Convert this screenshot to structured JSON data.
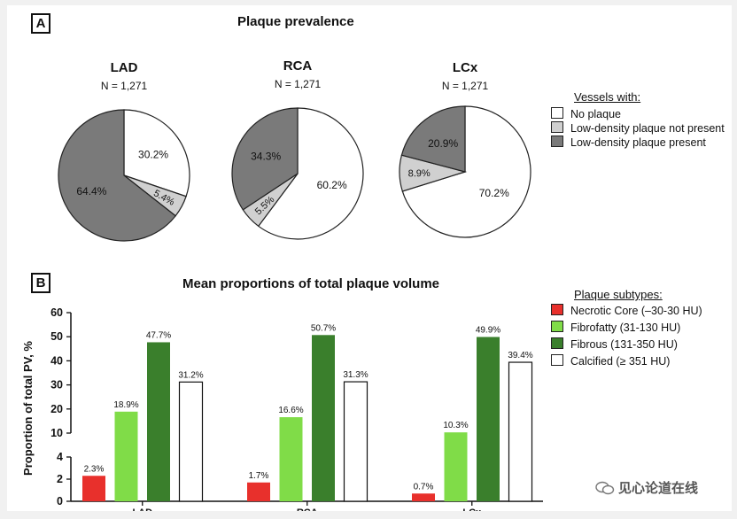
{
  "panel_a": {
    "label": "A",
    "title": "Plaque prevalence",
    "legend_title": "Vessels with:",
    "legend": [
      {
        "label": "No plaque",
        "color": "#ffffff"
      },
      {
        "label": "Low-density plaque not present",
        "color": "#d0d0d0"
      },
      {
        "label": "Low-density plaque present",
        "color": "#7a7a7a"
      }
    ]
  },
  "panel_b": {
    "label": "B",
    "title": "Mean proportions of total plaque volume",
    "legend_title": "Plaque subtypes:",
    "legend": [
      {
        "label": "Necrotic Core (–30-30 HU)",
        "color": "#e8302c"
      },
      {
        "label": "Fibrofatty (31-130 HU)",
        "color": "#80dc48"
      },
      {
        "label": "Fibrous (131-350 HU)",
        "color": "#3a7f2c"
      },
      {
        "label": "Calcified (≥ 351 HU)",
        "color": "#ffffff"
      }
    ]
  },
  "watermark": "见心论道在线",
  "chart_data": [
    {
      "type": "pie",
      "title": "LAD",
      "subtitle": "N = 1,271",
      "slices": [
        {
          "name": "No plaque",
          "value": 30.2,
          "label": "30.2%",
          "color": "#ffffff"
        },
        {
          "name": "Low-density plaque not present",
          "value": 5.4,
          "label": "5.4%",
          "color": "#d0d0d0"
        },
        {
          "name": "Low-density plaque present",
          "value": 64.4,
          "label": "64.4%",
          "color": "#7a7a7a"
        }
      ]
    },
    {
      "type": "pie",
      "title": "RCA",
      "subtitle": "N = 1,271",
      "slices": [
        {
          "name": "No plaque",
          "value": 60.2,
          "label": "60.2%",
          "color": "#ffffff"
        },
        {
          "name": "Low-density plaque not present",
          "value": 5.5,
          "label": "5.5%",
          "color": "#d0d0d0"
        },
        {
          "name": "Low-density plaque present",
          "value": 34.3,
          "label": "34.3%",
          "color": "#7a7a7a"
        }
      ]
    },
    {
      "type": "pie",
      "title": "LCx",
      "subtitle": "N = 1,271",
      "slices": [
        {
          "name": "No plaque",
          "value": 70.2,
          "label": "70.2%",
          "color": "#ffffff"
        },
        {
          "name": "Low-density plaque not present",
          "value": 8.9,
          "label": "8.9%",
          "color": "#d0d0d0"
        },
        {
          "name": "Low-density plaque present",
          "value": 20.9,
          "label": "20.9%",
          "color": "#7a7a7a"
        }
      ]
    },
    {
      "type": "bar",
      "title": "Mean proportions of total plaque volume",
      "ylabel": "Proportion of total PV, %",
      "xlabel": "",
      "categories": [
        "LAD",
        "RCA",
        "LCx"
      ],
      "ylim": [
        0,
        60
      ],
      "axis_break": [
        4,
        10
      ],
      "yticks_lower": [
        "0",
        "2",
        "4"
      ],
      "yticks_upper": [
        "10",
        "20",
        "30",
        "40",
        "50",
        "60"
      ],
      "series": [
        {
          "name": "Necrotic Core (–30-30 HU)",
          "color": "#e8302c",
          "values": [
            2.3,
            1.7,
            0.7
          ],
          "labels": [
            "2.3%",
            "1.7%",
            "0.7%"
          ]
        },
        {
          "name": "Fibrofatty (31-130 HU)",
          "color": "#80dc48",
          "values": [
            18.9,
            16.6,
            10.3
          ],
          "labels": [
            "18.9%",
            "16.6%",
            "10.3%"
          ]
        },
        {
          "name": "Fibrous (131-350 HU)",
          "color": "#3a7f2c",
          "values": [
            47.7,
            50.7,
            49.9
          ],
          "labels": [
            "47.7%",
            "50.7%",
            "49.9%"
          ]
        },
        {
          "name": "Calcified (≥ 351 HU)",
          "color": "#ffffff",
          "values": [
            31.2,
            31.3,
            39.4
          ],
          "labels": [
            "31.2%",
            "31.3%",
            "39.4%"
          ]
        }
      ]
    }
  ]
}
